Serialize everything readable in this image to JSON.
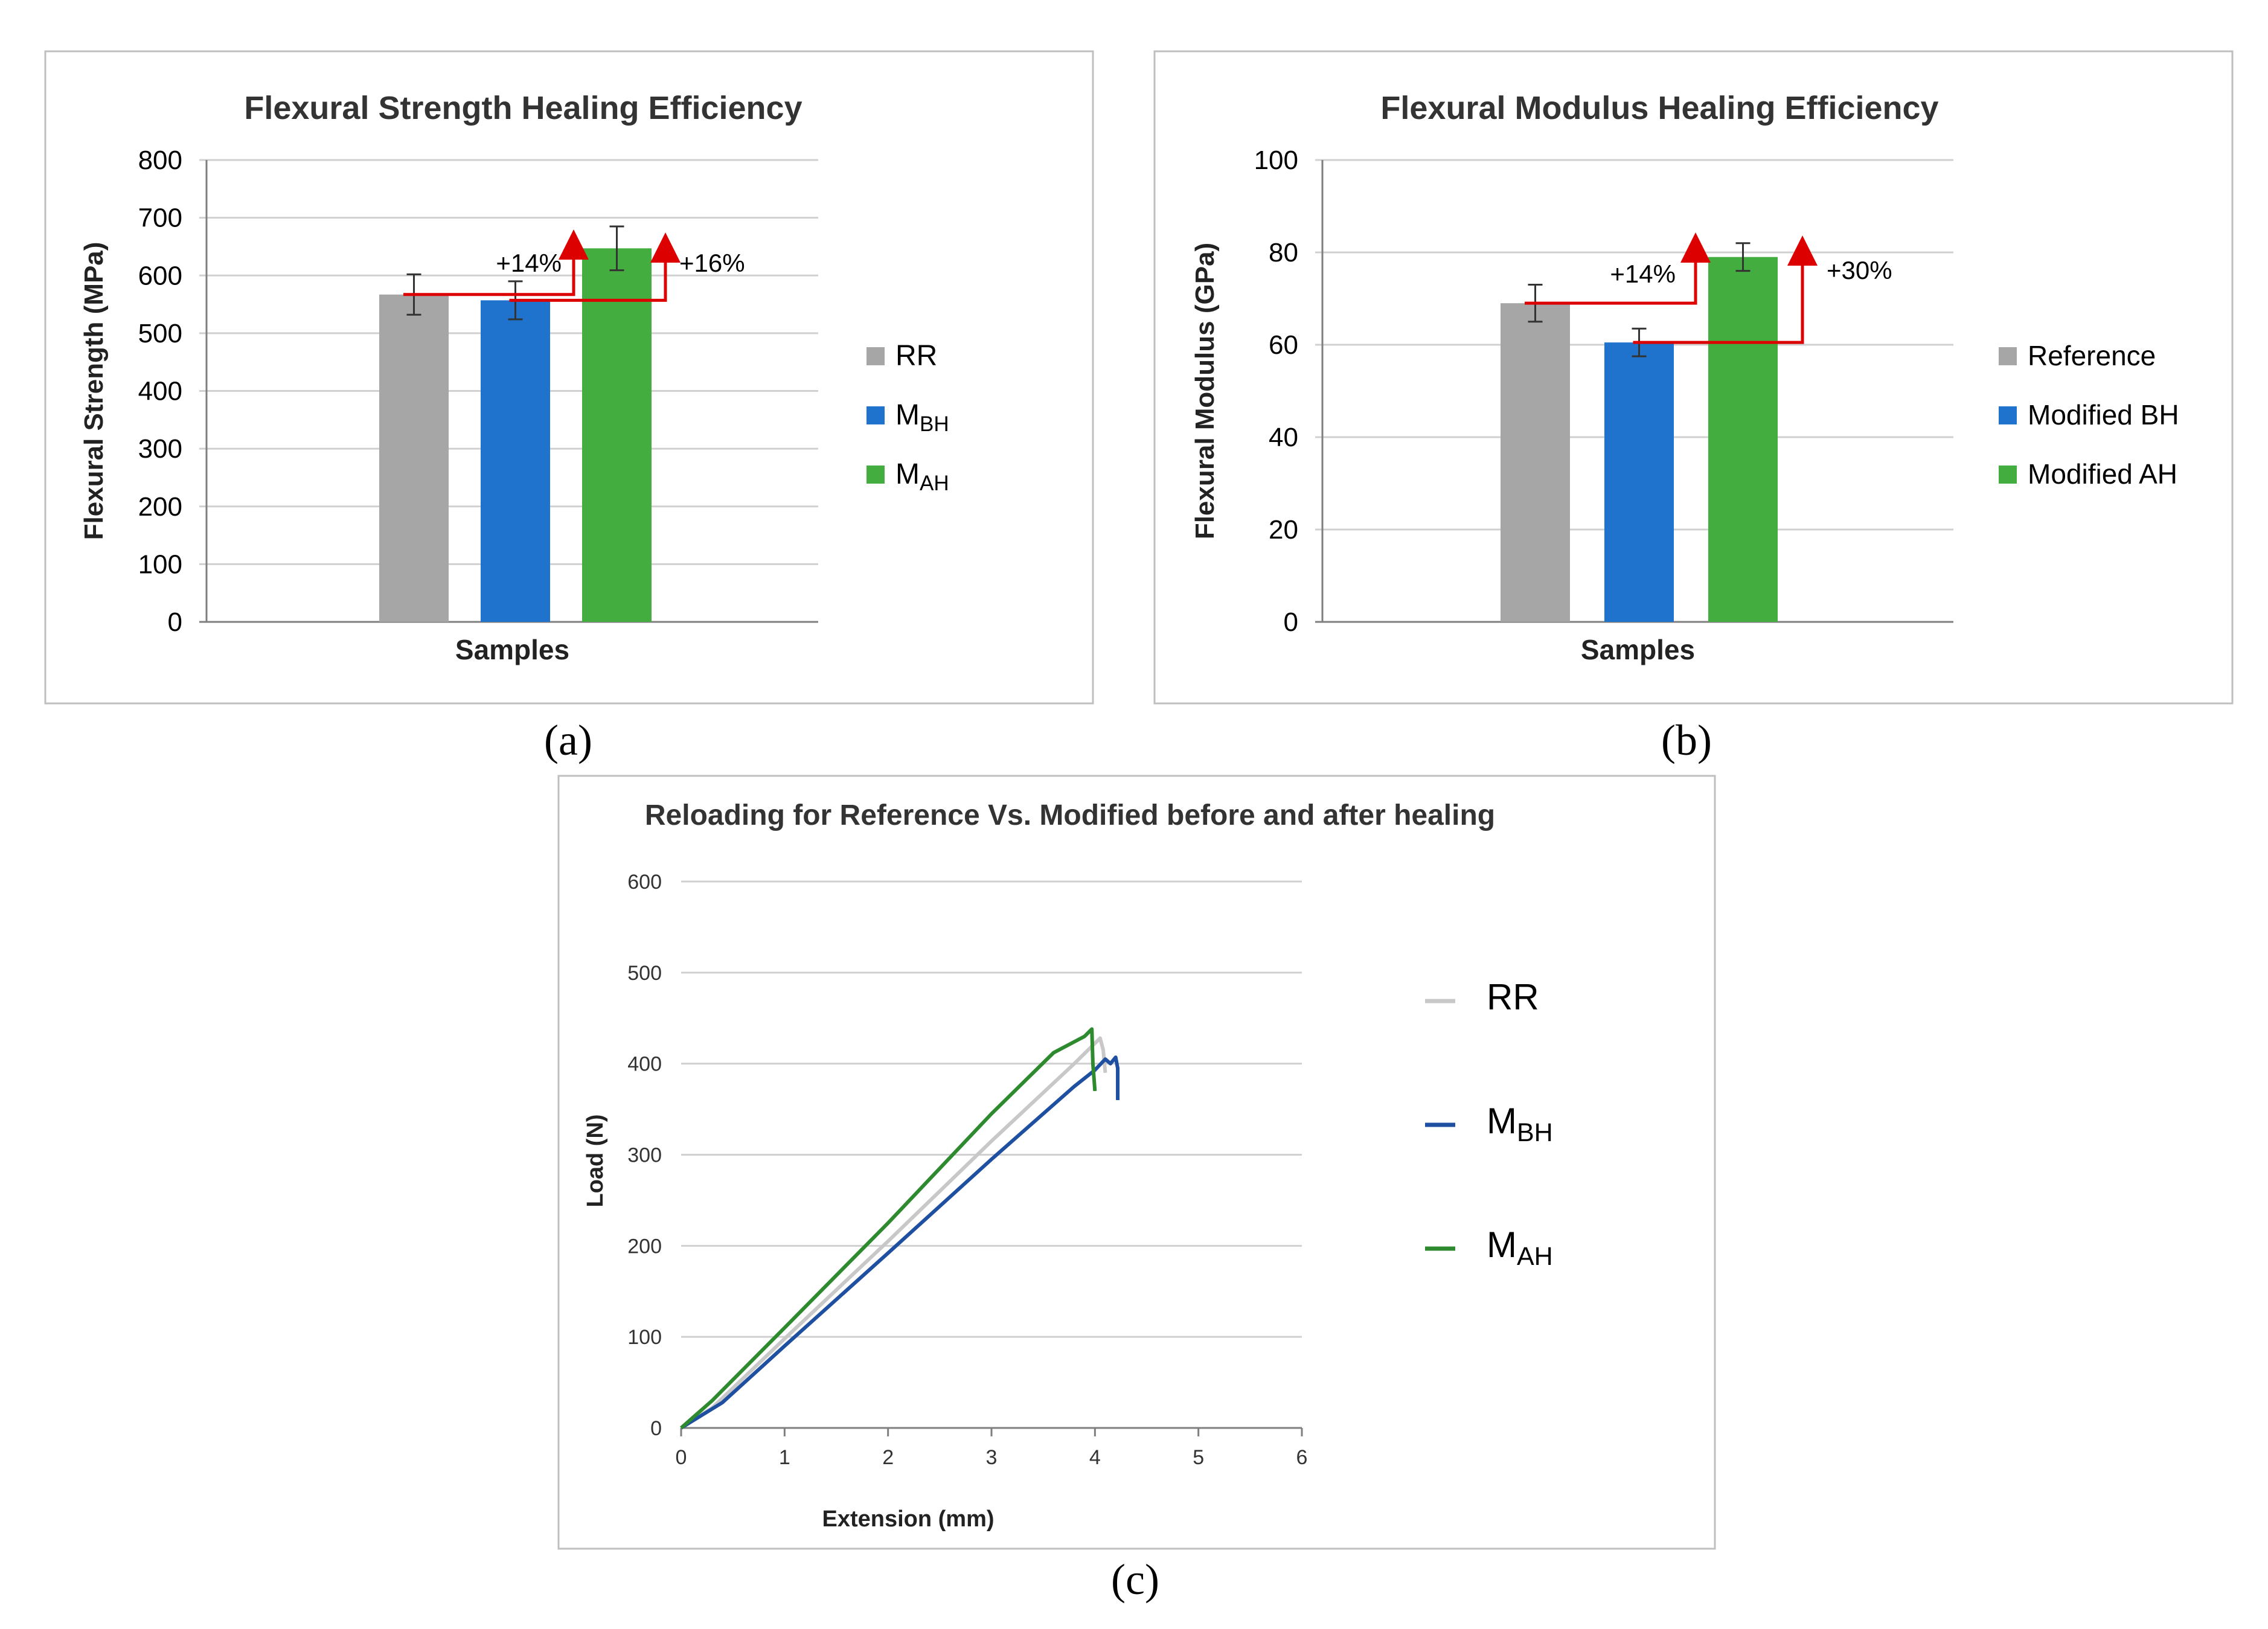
{
  "colors": {
    "gray": "#a6a6a6",
    "blue": "#1f73cc",
    "green": "#44ad3f",
    "grid": "#d0d0d0",
    "axis": "#7f7f7f",
    "annotation": "#dd0000",
    "line_rr": "#c8c8c8",
    "line_mbh": "#1f4fa0",
    "line_mah": "#2e8a2e"
  },
  "panel_labels": {
    "a": "(a)",
    "b": "(b)",
    "c": "(c)"
  },
  "chart_data": [
    {
      "id": "a",
      "type": "bar",
      "title": "Flexural Strength Healing Efficiency",
      "xlabel": "Samples",
      "ylabel": "Flexural Strength (MPa)",
      "ylim": [
        0,
        800
      ],
      "yticks": [
        0,
        100,
        200,
        300,
        400,
        500,
        600,
        700,
        800
      ],
      "grid": true,
      "legend_position": "right",
      "series": [
        {
          "name": "RR",
          "legend": {
            "main": "RR",
            "sub": ""
          },
          "value": 567,
          "error": 35,
          "color": "#a6a6a6"
        },
        {
          "name": "MBH",
          "legend": {
            "main": "M",
            "sub": "BH"
          },
          "value": 557,
          "error": 33,
          "color": "#1f73cc"
        },
        {
          "name": "MAH",
          "legend": {
            "main": "M",
            "sub": "AH"
          },
          "value": 647,
          "error": 38,
          "color": "#44ad3f"
        }
      ],
      "annotations": [
        "+14%",
        "+16%"
      ]
    },
    {
      "id": "b",
      "type": "bar",
      "title": "Flexural Modulus Healing Efficiency",
      "xlabel": "Samples",
      "ylabel": "Flexural Modulus (GPa)",
      "ylim": [
        0,
        100
      ],
      "yticks": [
        0,
        20,
        40,
        60,
        80,
        100
      ],
      "grid": true,
      "legend_position": "right",
      "series": [
        {
          "name": "Reference",
          "legend": {
            "main": "Reference",
            "sub": ""
          },
          "value": 69,
          "error": 4,
          "color": "#a6a6a6"
        },
        {
          "name": "Modified BH",
          "legend": {
            "main": "Modified BH",
            "sub": ""
          },
          "value": 60.5,
          "error": 3,
          "color": "#1f73cc"
        },
        {
          "name": "Modified AH",
          "legend": {
            "main": "Modified AH",
            "sub": ""
          },
          "value": 79,
          "error": 3,
          "color": "#44ad3f"
        }
      ],
      "annotations": [
        "+14%",
        "+30%"
      ]
    },
    {
      "id": "c",
      "type": "line",
      "title": "Reloading for Reference Vs. Modified before and after healing",
      "xlabel": "Extension (mm)",
      "ylabel": "Load (N)",
      "xlim": [
        0,
        6
      ],
      "ylim": [
        0,
        600
      ],
      "xticks": [
        0,
        1,
        2,
        3,
        4,
        5,
        6
      ],
      "yticks": [
        0,
        100,
        200,
        300,
        400,
        500,
        600
      ],
      "grid": true,
      "legend_position": "right",
      "series": [
        {
          "name": "RR",
          "legend": {
            "main": "RR",
            "sub": ""
          },
          "color": "#c8c8c8",
          "x": [
            0,
            0.3,
            1.0,
            2.0,
            3.0,
            3.8,
            4.05,
            4.08,
            4.1
          ],
          "y": [
            0,
            22,
            98,
            205,
            315,
            400,
            428,
            415,
            390
          ]
        },
        {
          "name": "MBH",
          "legend": {
            "main": "M",
            "sub": "BH"
          },
          "color": "#1f4fa0",
          "x": [
            0,
            0.4,
            1.0,
            2.0,
            3.0,
            3.8,
            4.0,
            4.1,
            4.15,
            4.2,
            4.22,
            4.22
          ],
          "y": [
            0,
            28,
            90,
            192,
            295,
            375,
            393,
            405,
            400,
            407,
            395,
            360
          ]
        },
        {
          "name": "MAH",
          "legend": {
            "main": "M",
            "sub": "AH"
          },
          "color": "#2e8a2e",
          "x": [
            0,
            0.3,
            1.0,
            2.0,
            3.0,
            3.6,
            3.9,
            3.97,
            3.98,
            4.0
          ],
          "y": [
            0,
            30,
            110,
            225,
            345,
            412,
            430,
            438,
            400,
            370
          ]
        }
      ]
    }
  ]
}
